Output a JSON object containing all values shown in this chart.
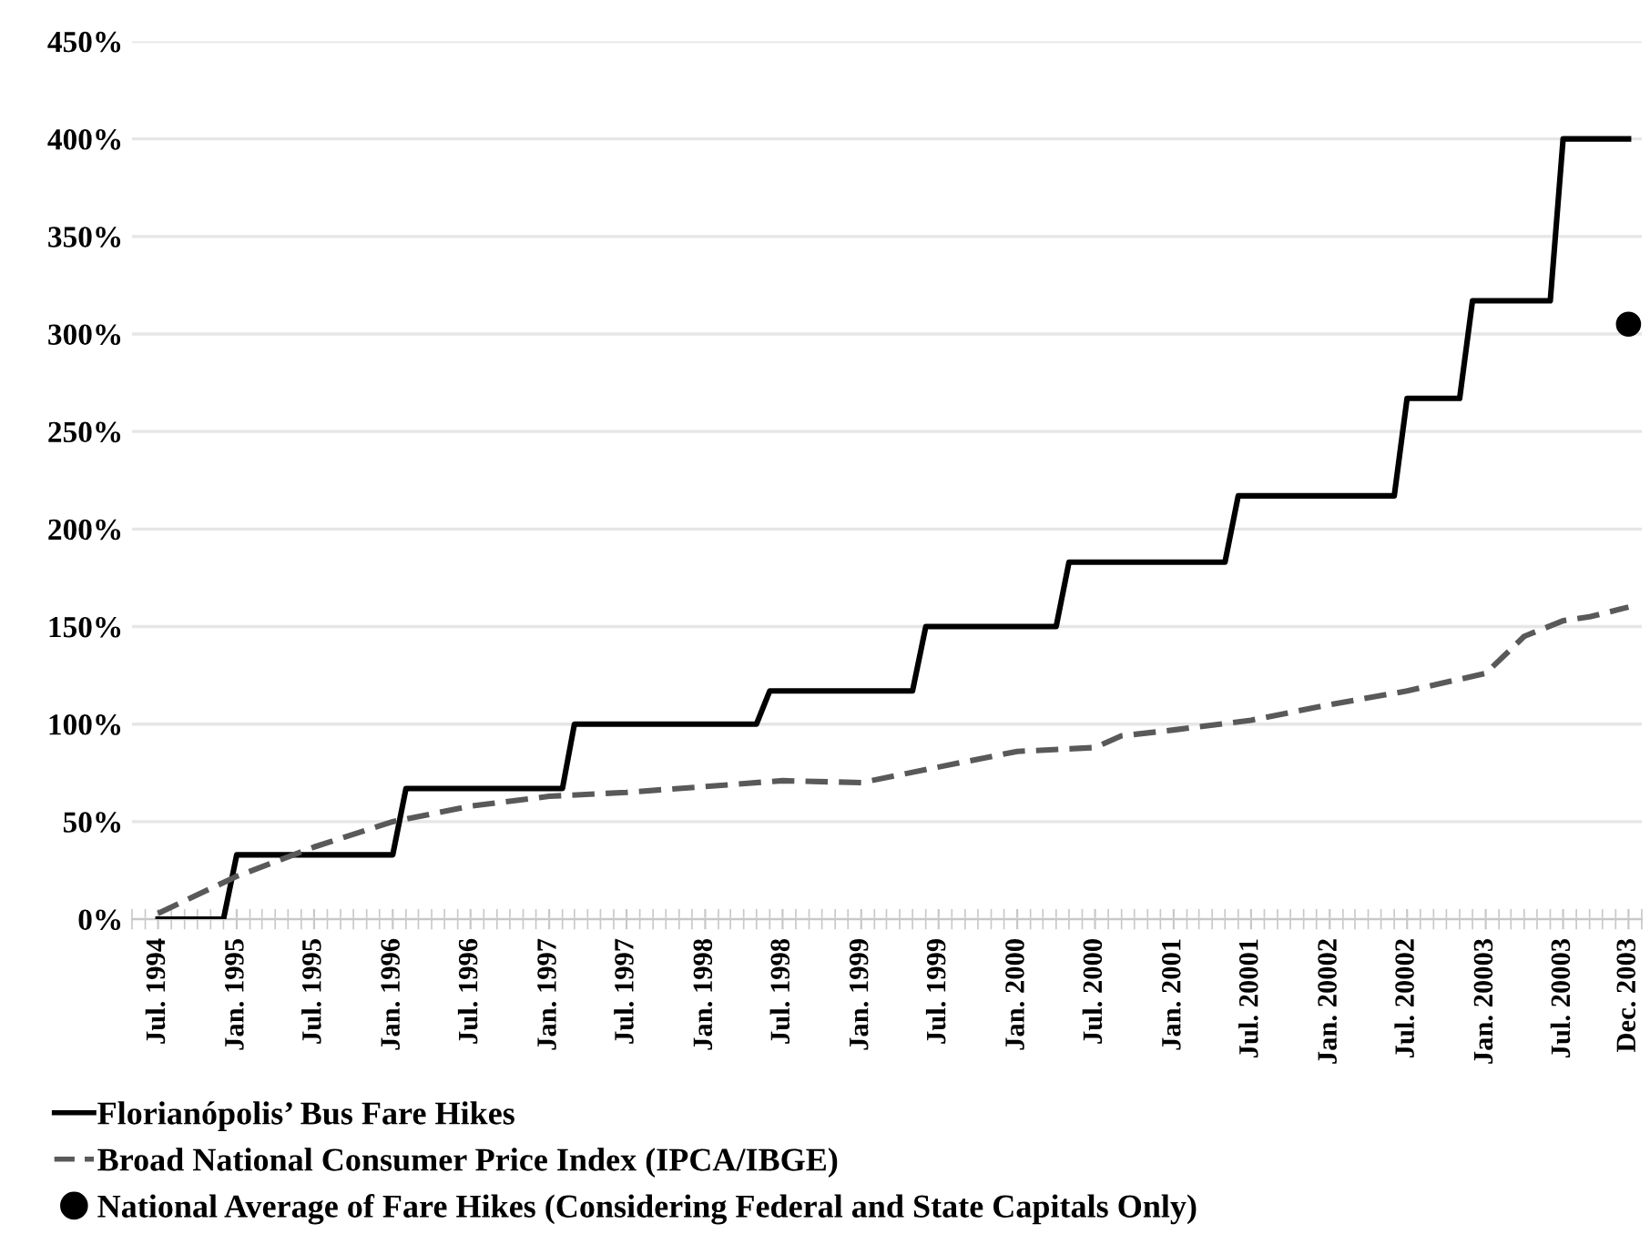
{
  "chart_data": {
    "type": "line",
    "series": [
      {
        "name": "Florianópolis’ Bus Fare Hikes",
        "line_style": "solid",
        "color": "#000000",
        "x": [
          "1994-07",
          "1994-12",
          "1995-01",
          "1996-01",
          "1996-02",
          "1997-02",
          "1997-03",
          "1998-05",
          "1998-06",
          "1999-05",
          "1999-06",
          "2000-04",
          "2000-05",
          "2001-05",
          "2001-06",
          "2002-06",
          "2002-07",
          "2002-11",
          "2002-12",
          "2003-06",
          "2003-07",
          "2003-12"
        ],
        "values": [
          0,
          0,
          33,
          33,
          67,
          67,
          100,
          100,
          117,
          117,
          150,
          150,
          183,
          183,
          217,
          217,
          267,
          267,
          317,
          317,
          400,
          400
        ]
      },
      {
        "name": "Broad National Consumer Price Index (IPCA/IBGE)",
        "line_style": "dashed",
        "color": "#595959",
        "x": [
          "1994-07",
          "1995-01",
          "1995-07",
          "1996-01",
          "1996-07",
          "1997-01",
          "1997-07",
          "1998-01",
          "1998-07",
          "1999-01",
          "1999-07",
          "2000-01",
          "2000-07",
          "2000-09",
          "2001-01",
          "2001-07",
          "2002-01",
          "2002-07",
          "2003-01",
          "2003-04",
          "2003-07",
          "2003-09",
          "2003-12"
        ],
        "values": [
          3,
          22,
          37,
          50,
          58,
          63,
          65,
          68,
          71,
          70,
          78,
          86,
          88,
          94,
          97,
          102,
          110,
          117,
          126,
          145,
          153,
          155,
          160
        ]
      },
      {
        "name": "National Average of Fare Hikes (Considering Federal and State Capitals Only)",
        "type": "scatter",
        "marker": "circle",
        "color": "#000000",
        "x": [
          "2003-12"
        ],
        "values": [
          305
        ]
      }
    ],
    "xlim": [
      "1994-05",
      "2004-01"
    ],
    "xticks": [
      {
        "value": "1994-07",
        "label": "Jul. 1994"
      },
      {
        "value": "1995-01",
        "label": "Jan. 1995"
      },
      {
        "value": "1995-07",
        "label": "Jul. 1995"
      },
      {
        "value": "1996-01",
        "label": "Jan. 1996"
      },
      {
        "value": "1996-07",
        "label": "Jul. 1996"
      },
      {
        "value": "1997-01",
        "label": "Jan. 1997"
      },
      {
        "value": "1997-07",
        "label": "Jul. 1997"
      },
      {
        "value": "1998-01",
        "label": "Jan. 1998"
      },
      {
        "value": "1998-07",
        "label": "Jul. 1998"
      },
      {
        "value": "1999-01",
        "label": "Jan. 1999"
      },
      {
        "value": "1999-07",
        "label": "Jul. 1999"
      },
      {
        "value": "2000-01",
        "label": "Jan. 2000"
      },
      {
        "value": "2000-07",
        "label": "Jul. 2000"
      },
      {
        "value": "2001-01",
        "label": "Jan. 2001"
      },
      {
        "value": "2001-07",
        "label": "Jul. 20001"
      },
      {
        "value": "2002-01",
        "label": "Jan. 20002"
      },
      {
        "value": "2002-07",
        "label": "Jul. 20002"
      },
      {
        "value": "2003-01",
        "label": "Jan. 20003"
      },
      {
        "value": "2003-07",
        "label": "Jul. 20003"
      },
      {
        "value": "2003-12",
        "label": "Dec. 2003"
      }
    ],
    "ylim": [
      0,
      450
    ],
    "yticks": [
      {
        "value": 0,
        "label": "0%"
      },
      {
        "value": 50,
        "label": "50%"
      },
      {
        "value": 100,
        "label": "100%"
      },
      {
        "value": 150,
        "label": "150%"
      },
      {
        "value": 200,
        "label": "200%"
      },
      {
        "value": 250,
        "label": "250%"
      },
      {
        "value": 300,
        "label": "300%"
      },
      {
        "value": 350,
        "label": "350%"
      },
      {
        "value": 400,
        "label": "400%"
      },
      {
        "value": 450,
        "label": "450%"
      }
    ],
    "grid": "y",
    "legend": "bottom"
  }
}
